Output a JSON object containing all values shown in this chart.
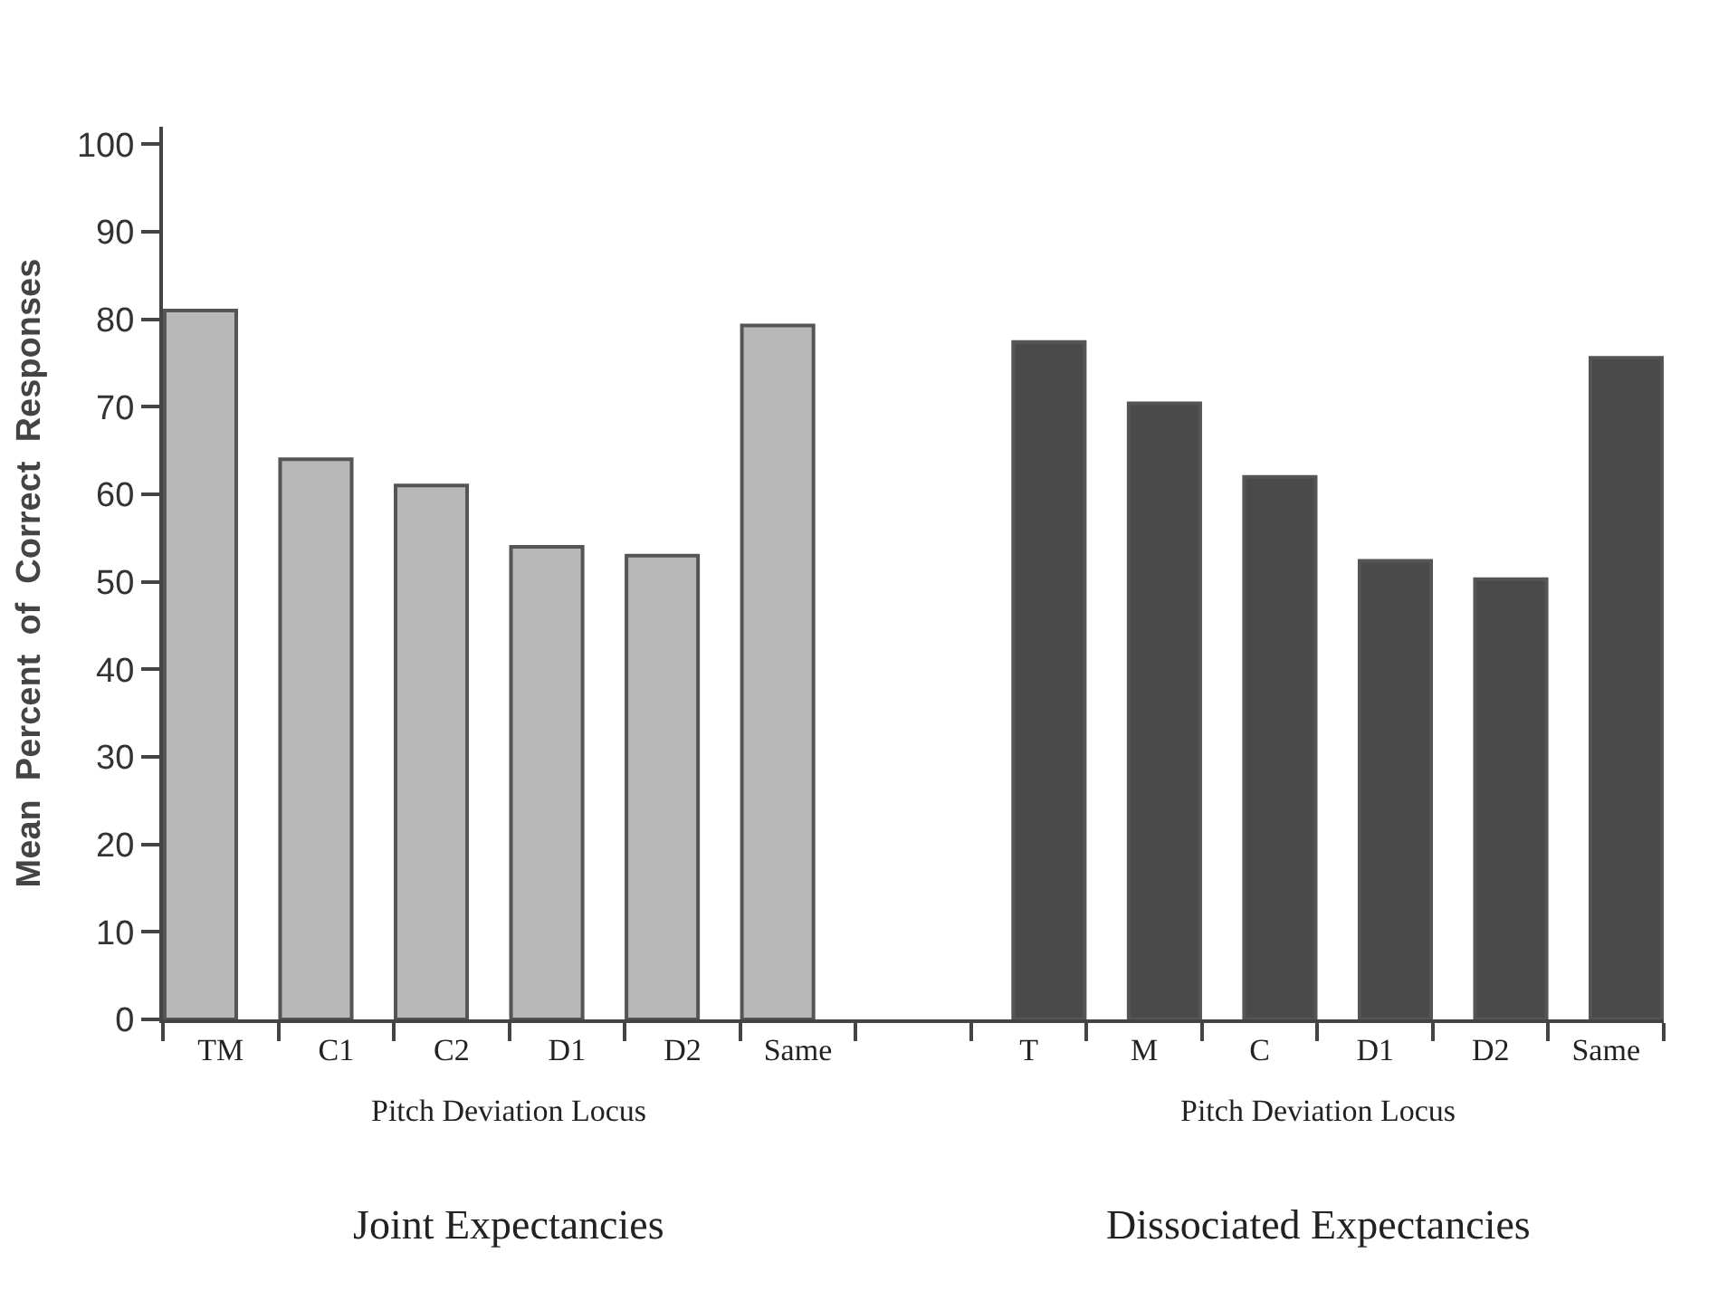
{
  "chart_data": {
    "type": "bar",
    "ylabel": "Mean  Percent  of  Correct  Responses",
    "categories": [
      "TM",
      "C1",
      "C2",
      "D1",
      "D2",
      "Same",
      null,
      "T",
      "M",
      "C",
      "D1",
      "D2",
      "Same"
    ],
    "series": [
      {
        "color": "#b8b8b8",
        "values": [
          81,
          64,
          61,
          54,
          53,
          79.3,
          null,
          null,
          null,
          null,
          null,
          null,
          null
        ]
      },
      {
        "color": "#4a4a4a",
        "values": [
          null,
          null,
          null,
          null,
          null,
          null,
          null,
          77.4,
          70.4,
          62,
          52.4,
          50.3,
          75.6
        ]
      }
    ],
    "ylim": [
      0,
      102
    ],
    "yticks": [
      0,
      10,
      20,
      30,
      40,
      50,
      60,
      70,
      80,
      90,
      100
    ],
    "annotations": [
      "Pitch Deviation Locus",
      "Pitch Deviation Locus",
      "Joint Expectancies",
      "Dissociated Expectancies"
    ]
  }
}
